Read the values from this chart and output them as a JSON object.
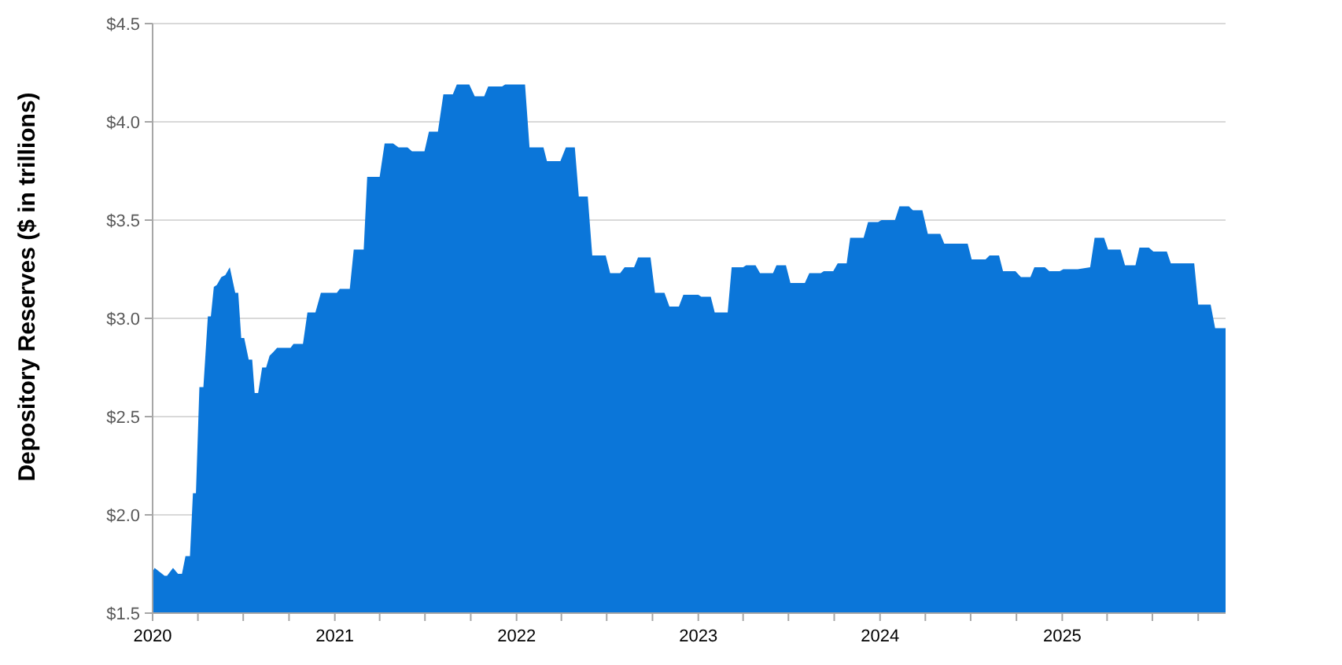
{
  "chart_data": {
    "type": "area",
    "ylabel": "Depository Reserves ($ in trillions)",
    "color": "#0b76d9",
    "grid": "y",
    "x": [
      "2020-01-01",
      "2020-01-05",
      "2020-01-25",
      "2020-01-30",
      "2020-02-11",
      "2020-02-21",
      "2020-02-29",
      "2020-03-07",
      "2020-03-16",
      "2020-03-22",
      "2020-03-28",
      "2020-04-04",
      "2020-04-12",
      "2020-04-21",
      "2020-04-27",
      "2020-05-03",
      "2020-05-09",
      "2020-05-18",
      "2020-05-26",
      "2020-06-04",
      "2020-06-15",
      "2020-06-21",
      "2020-06-27",
      "2020-07-03",
      "2020-07-12",
      "2020-07-19",
      "2020-07-24",
      "2020-07-31",
      "2020-08-08",
      "2020-08-16",
      "2020-08-23",
      "2020-08-31",
      "2020-09-07",
      "2020-10-04",
      "2020-10-10",
      "2020-10-29",
      "2020-11-07",
      "2020-11-23",
      "2020-12-04",
      "2021-01-05",
      "2021-01-11",
      "2021-01-31",
      "2021-02-08",
      "2021-02-28",
      "2021-03-07",
      "2021-04-01",
      "2021-04-11",
      "2021-04-28",
      "2021-05-09",
      "2021-05-27",
      "2021-06-05",
      "2021-06-30",
      "2021-07-09",
      "2021-07-27",
      "2021-08-07",
      "2021-08-26",
      "2021-09-03",
      "2021-09-28",
      "2021-10-09",
      "2021-10-28",
      "2021-11-05",
      "2021-12-03",
      "2021-12-09",
      "2022-01-18",
      "2022-01-27",
      "2022-02-24",
      "2022-03-03",
      "2022-03-30",
      "2022-04-10",
      "2022-04-28",
      "2022-05-06",
      "2022-05-24",
      "2022-06-02",
      "2022-06-29",
      "2022-07-08",
      "2022-07-28",
      "2022-08-06",
      "2022-08-25",
      "2022-09-02",
      "2022-09-27",
      "2022-10-06",
      "2022-10-25",
      "2022-11-04",
      "2022-11-23",
      "2022-12-02",
      "2023-01-01",
      "2023-01-07",
      "2023-01-26",
      "2023-02-03",
      "2023-03-01",
      "2023-03-09",
      "2023-04-01",
      "2023-04-07",
      "2023-04-26",
      "2023-05-05",
      "2023-05-31",
      "2023-06-07",
      "2023-06-26",
      "2023-07-05",
      "2023-08-03",
      "2023-08-12",
      "2023-09-04",
      "2023-09-10",
      "2023-09-29",
      "2023-10-08",
      "2023-10-26",
      "2023-11-02",
      "2023-11-29",
      "2023-12-08",
      "2023-12-28",
      "2024-01-04",
      "2024-01-31",
      "2024-02-09",
      "2024-02-28",
      "2024-03-07",
      "2024-03-26",
      "2024-04-06",
      "2024-05-01",
      "2024-05-09",
      "2024-06-25",
      "2024-07-03",
      "2024-07-31",
      "2024-08-08",
      "2024-08-27",
      "2024-09-04",
      "2024-09-29",
      "2024-10-10",
      "2024-10-29",
      "2024-11-06",
      "2024-11-27",
      "2024-12-06",
      "2024-12-27",
      "2025-01-03",
      "2025-02-01",
      "2025-02-26",
      "2025-03-07",
      "2025-03-26",
      "2025-04-03",
      "2025-04-28",
      "2025-05-07",
      "2025-05-28",
      "2025-06-05",
      "2025-06-24",
      "2025-07-03",
      "2025-07-30",
      "2025-08-07",
      "2025-09-23",
      "2025-10-01",
      "2025-10-26",
      "2025-11-04",
      "2025-11-25"
    ],
    "values": [
      1.71,
      1.73,
      1.69,
      1.69,
      1.73,
      1.7,
      1.7,
      1.79,
      1.79,
      2.11,
      2.11,
      2.65,
      2.65,
      3.01,
      3.01,
      3.16,
      3.17,
      3.21,
      3.22,
      3.26,
      3.13,
      3.13,
      2.9,
      2.9,
      2.79,
      2.79,
      2.62,
      2.62,
      2.75,
      2.75,
      2.81,
      2.83,
      2.85,
      2.85,
      2.87,
      2.87,
      3.03,
      3.03,
      3.13,
      3.13,
      3.15,
      3.15,
      3.35,
      3.35,
      3.72,
      3.72,
      3.89,
      3.89,
      3.87,
      3.87,
      3.85,
      3.85,
      3.95,
      3.95,
      4.14,
      4.14,
      4.19,
      4.19,
      4.13,
      4.13,
      4.18,
      4.18,
      4.19,
      4.19,
      3.87,
      3.87,
      3.8,
      3.8,
      3.87,
      3.87,
      3.62,
      3.62,
      3.32,
      3.32,
      3.23,
      3.23,
      3.26,
      3.26,
      3.31,
      3.31,
      3.13,
      3.13,
      3.06,
      3.06,
      3.12,
      3.12,
      3.11,
      3.11,
      3.03,
      3.03,
      3.26,
      3.26,
      3.27,
      3.27,
      3.23,
      3.23,
      3.27,
      3.27,
      3.18,
      3.18,
      3.23,
      3.23,
      3.24,
      3.24,
      3.28,
      3.28,
      3.41,
      3.41,
      3.49,
      3.49,
      3.5,
      3.5,
      3.57,
      3.57,
      3.55,
      3.55,
      3.43,
      3.43,
      3.38,
      3.38,
      3.3,
      3.3,
      3.32,
      3.32,
      3.24,
      3.24,
      3.21,
      3.21,
      3.26,
      3.26,
      3.24,
      3.24,
      3.25,
      3.25,
      3.26,
      3.41,
      3.41,
      3.35,
      3.35,
      3.27,
      3.27,
      3.36,
      3.36,
      3.34,
      3.34,
      3.28,
      3.28,
      3.07,
      3.07,
      2.95,
      2.95
    ],
    "xlim": [
      "2020-01-01",
      "2025-11-25"
    ],
    "xticks": [
      "2020",
      {
        "value": "2020-04",
        "label": null
      },
      {
        "value": "2020-07",
        "label": null
      },
      {
        "value": "2020-10",
        "label": null
      },
      "2021",
      {
        "value": "2021-04",
        "label": null
      },
      {
        "value": "2021-07",
        "label": null
      },
      {
        "value": "2021-10",
        "label": null
      },
      "2022",
      {
        "value": "2022-04",
        "label": null
      },
      {
        "value": "2022-07",
        "label": null
      },
      {
        "value": "2022-10",
        "label": null
      },
      "2023",
      {
        "value": "2023-04",
        "label": null
      },
      {
        "value": "2023-07",
        "label": null
      },
      {
        "value": "2023-10",
        "label": null
      },
      "2024",
      {
        "value": "2024-04",
        "label": null
      },
      {
        "value": "2024-07",
        "label": null
      },
      {
        "value": "2024-10",
        "label": null
      },
      "2025",
      {
        "value": "2025-04",
        "label": null
      },
      {
        "value": "2025-07",
        "label": null
      },
      {
        "value": "2025-10",
        "label": null
      }
    ],
    "ylim": [
      1.5,
      4.5
    ],
    "yticks": [
      {
        "value": 1.5,
        "label": "$1.5"
      },
      {
        "value": 2.0,
        "label": "$2.0"
      },
      {
        "value": 2.5,
        "label": "$2.5"
      },
      {
        "value": 3.0,
        "label": "$3.0"
      },
      {
        "value": 3.5,
        "label": "$3.5"
      },
      {
        "value": 4.0,
        "label": "$4.0"
      },
      {
        "value": 4.5,
        "label": "$4.5"
      }
    ]
  }
}
